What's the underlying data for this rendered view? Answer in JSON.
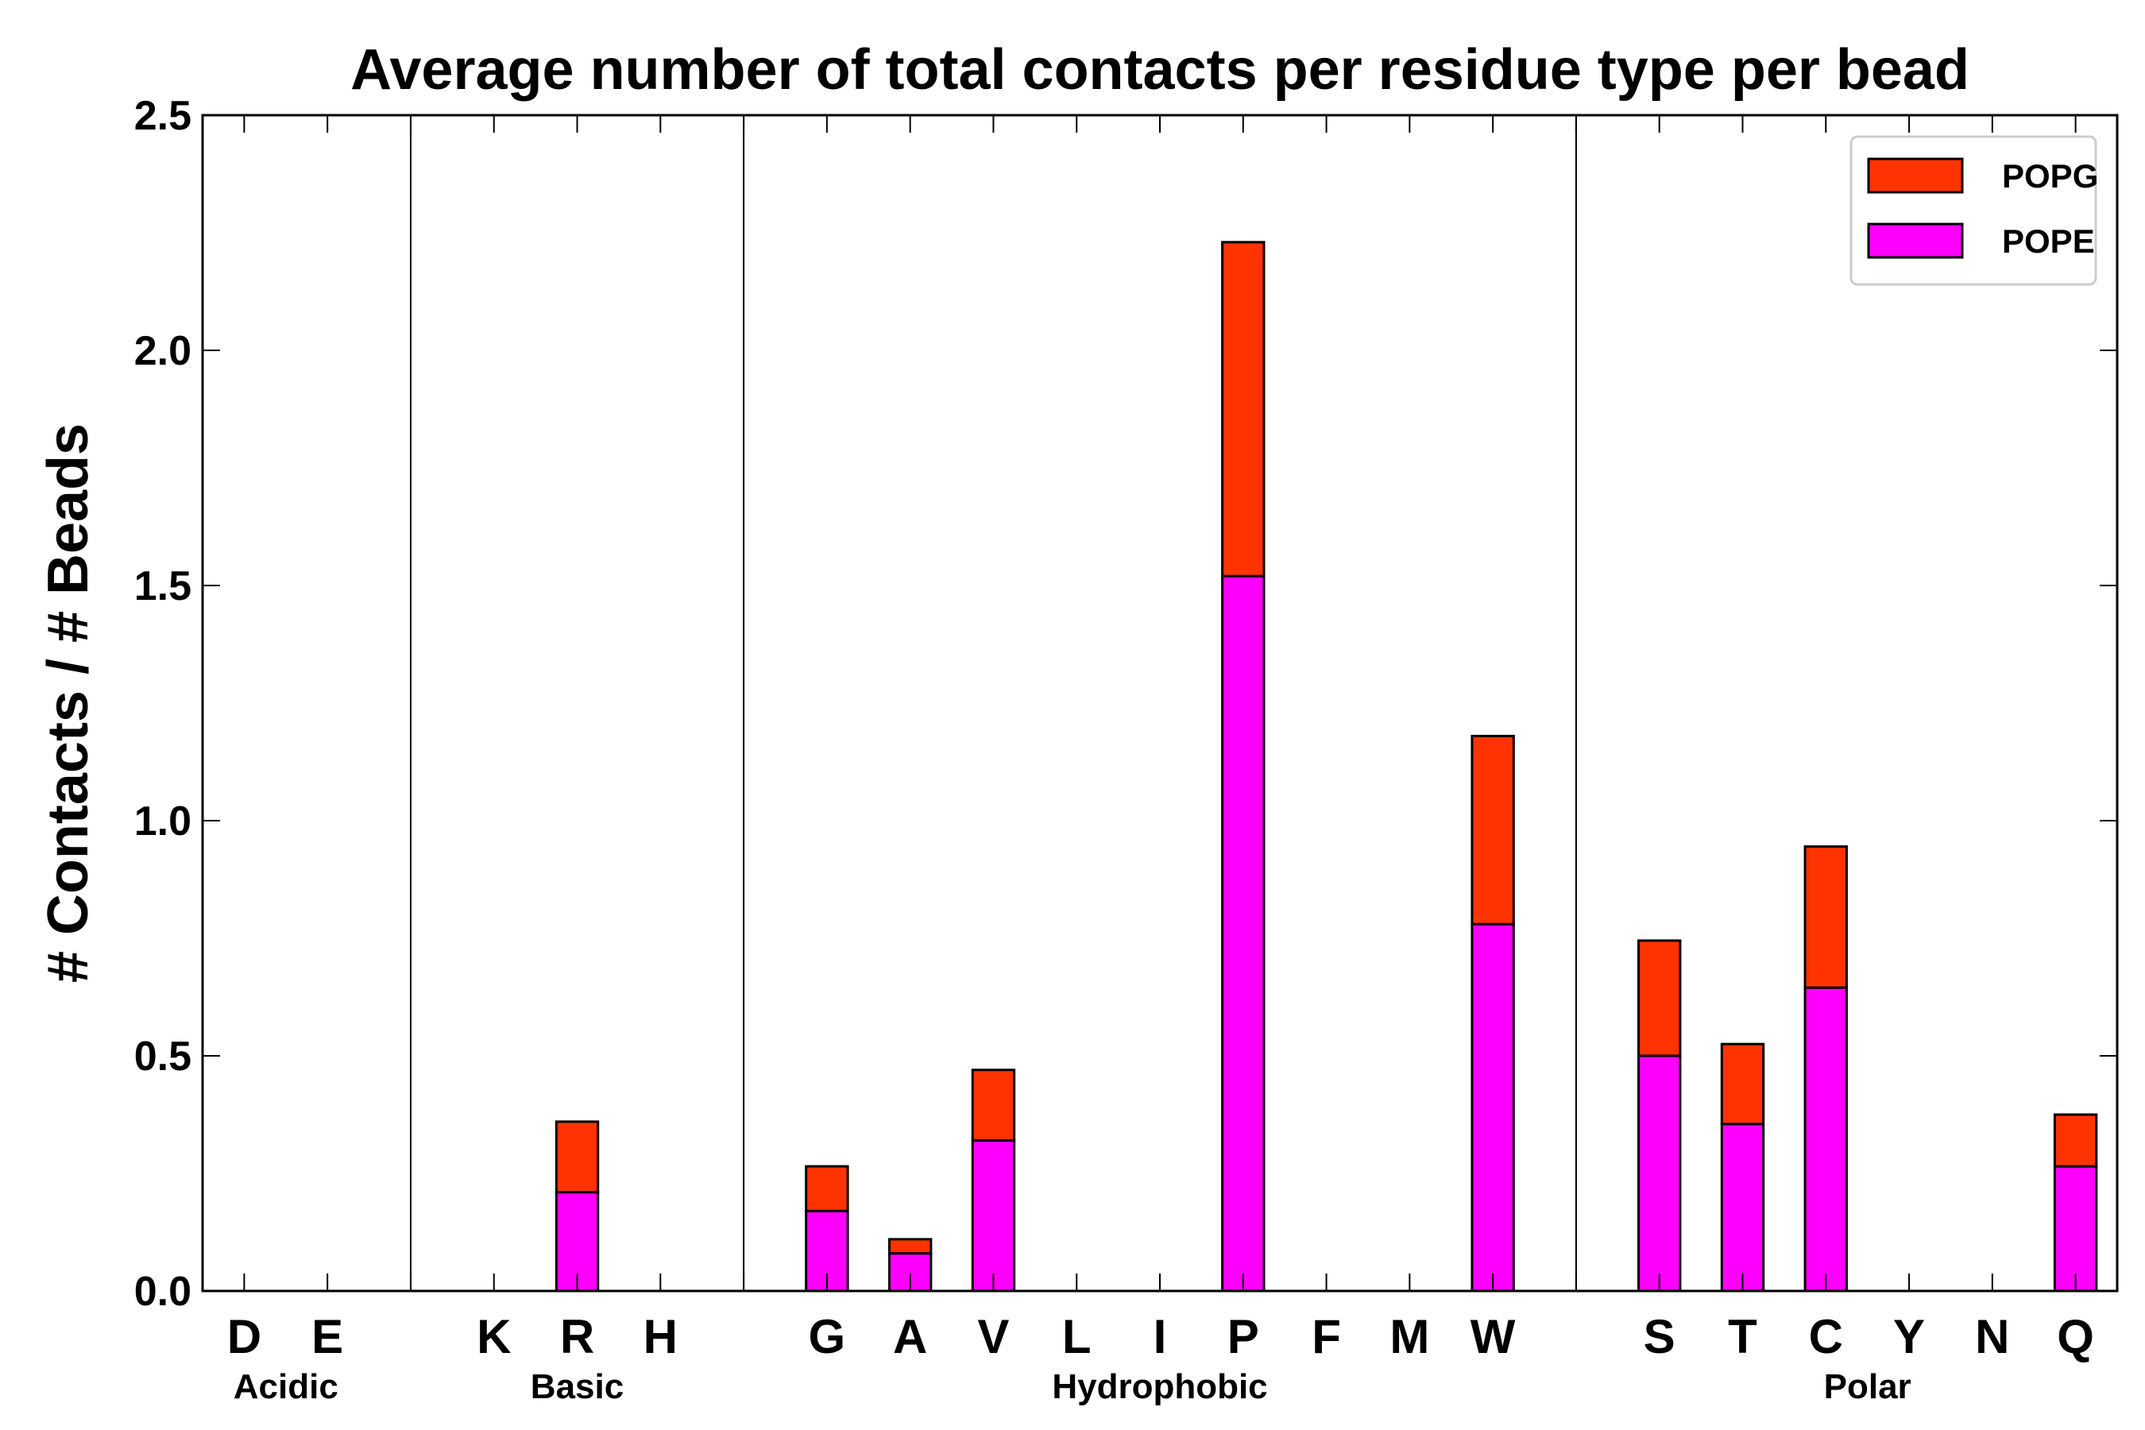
{
  "chart_data": {
    "type": "bar",
    "stacked": true,
    "title": "Average number of total contacts per residue type per bead",
    "xlabel": "",
    "ylabel": "# Contacts / # Beads",
    "ylim": [
      0,
      2.5
    ],
    "yticks": [
      "0.0",
      "0.5",
      "1.0",
      "1.5",
      "2.0",
      "2.5"
    ],
    "categories": [
      "D",
      "E",
      "",
      "K",
      "R",
      "H",
      "",
      "G",
      "A",
      "V",
      "L",
      "I",
      "P",
      "F",
      "M",
      "W",
      "",
      "S",
      "T",
      "C",
      "Y",
      "N",
      "Q"
    ],
    "series": [
      {
        "name": "POPE",
        "color": "#ff00ff",
        "values": [
          0,
          0,
          0,
          0,
          0.21,
          0,
          0,
          0.17,
          0.08,
          0.32,
          0,
          0,
          1.52,
          0,
          0,
          0.78,
          0,
          0.5,
          0.355,
          0.645,
          0,
          0,
          0.265
        ]
      },
      {
        "name": "POPG",
        "color": "#ff3300",
        "values": [
          0,
          0,
          0,
          0,
          0.15,
          0,
          0,
          0.095,
          0.03,
          0.15,
          0,
          0,
          0.71,
          0,
          0,
          0.4,
          0,
          0.245,
          0.17,
          0.3,
          0,
          0,
          0.11
        ]
      }
    ],
    "groups": [
      {
        "name": "Acidic",
        "first": 0,
        "last": 1
      },
      {
        "name": "Basic",
        "first": 3,
        "last": 5
      },
      {
        "name": "Hydrophobic",
        "first": 7,
        "last": 15
      },
      {
        "name": "Polar",
        "first": 17,
        "last": 22
      }
    ],
    "separators_after": [
      2,
      6,
      16
    ],
    "legend": {
      "position": "top-right",
      "order": [
        "POPG",
        "POPE"
      ]
    }
  }
}
